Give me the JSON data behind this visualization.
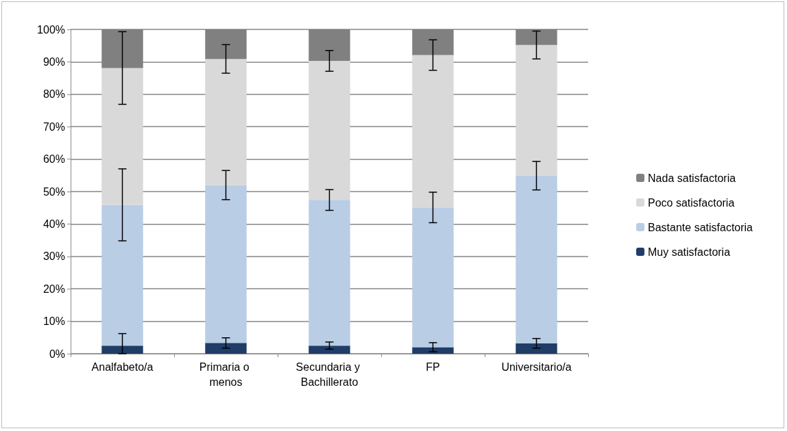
{
  "chart_data": {
    "type": "bar",
    "stacked": true,
    "categories": [
      "Analfabeto/a",
      "Primaria o menos",
      "Secundaria y Bachillerato",
      "FP",
      "Universitario/a"
    ],
    "series": [
      {
        "name": "Muy satisfactoria",
        "color": "#1f3d66",
        "values": [
          2.5,
          3.3,
          2.5,
          2.0,
          3.2
        ],
        "errors": [
          [
            0,
            6.2
          ],
          1.6,
          1.1,
          1.4,
          1.5
        ]
      },
      {
        "name": "Bastante satisfactoria",
        "color": "#b9cde5",
        "values": [
          43.4,
          48.7,
          44.9,
          43.1,
          51.7
        ],
        "errors": [
          11.1,
          4.5,
          3.2,
          4.7,
          4.4
        ]
      },
      {
        "name": "Poco satisfactoria",
        "color": "#d9d9d9",
        "values": [
          42.2,
          38.9,
          42.9,
          47.0,
          40.3
        ],
        "errors": [
          11.2,
          4.4,
          3.2,
          4.7,
          4.3
        ]
      },
      {
        "name": "Nada satisfactoria",
        "color": "#808080",
        "values": [
          11.9,
          9.1,
          9.7,
          7.9,
          4.8
        ]
      }
    ],
    "ylim": [
      0,
      100
    ],
    "yticks": [
      {
        "value": 0,
        "label": "0%"
      },
      {
        "value": 10,
        "label": "10%"
      },
      {
        "value": 20,
        "label": "20%"
      },
      {
        "value": 30,
        "label": "30%"
      },
      {
        "value": 40,
        "label": "40%"
      },
      {
        "value": 50,
        "label": "50%"
      },
      {
        "value": 60,
        "label": "60%"
      },
      {
        "value": 70,
        "label": "70%"
      },
      {
        "value": 80,
        "label": "80%"
      },
      {
        "value": 90,
        "label": "90%"
      },
      {
        "value": 100,
        "label": "100%"
      }
    ],
    "grid": "y",
    "legend": "right"
  }
}
